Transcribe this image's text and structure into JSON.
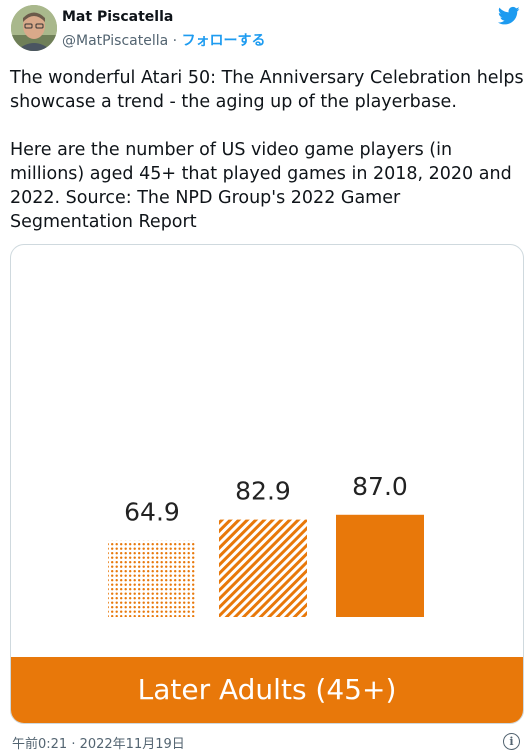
{
  "author": {
    "name": "Mat Piscatella",
    "handle": "@MatPiscatella",
    "separator": "·",
    "follow_label": "フォローする"
  },
  "tweet": {
    "paragraph1": "The wonderful Atari 50: The Anniversary Celebration helps showcase a trend - the aging up of the playerbase.",
    "paragraph2": "Here are the number of US video game players (in millions) aged 45+ that played games in 2018, 2020 and 2022. Source: The NPD Group's 2022 Gamer Segmentation Report"
  },
  "footer": {
    "timestamp": "午前0:21 · 2022年11月19日",
    "info_glyph": "i"
  },
  "colors": {
    "accent": "#1d9bf0",
    "bar": "#e8780a"
  },
  "icons": {
    "brand": "twitter-bird-icon",
    "info": "info-icon"
  },
  "chart_data": {
    "type": "bar",
    "categories": [
      "",
      "",
      ""
    ],
    "values": [
      64.9,
      82.9,
      87.0
    ],
    "value_labels": [
      "64.9",
      "82.9",
      "87.0"
    ],
    "fills": [
      "dots",
      "stripes",
      "solid"
    ],
    "title": "",
    "banner": "Later Adults (45+)",
    "xlabel": "",
    "ylabel": "",
    "ylim": [
      0,
      100
    ],
    "grid": false
  }
}
